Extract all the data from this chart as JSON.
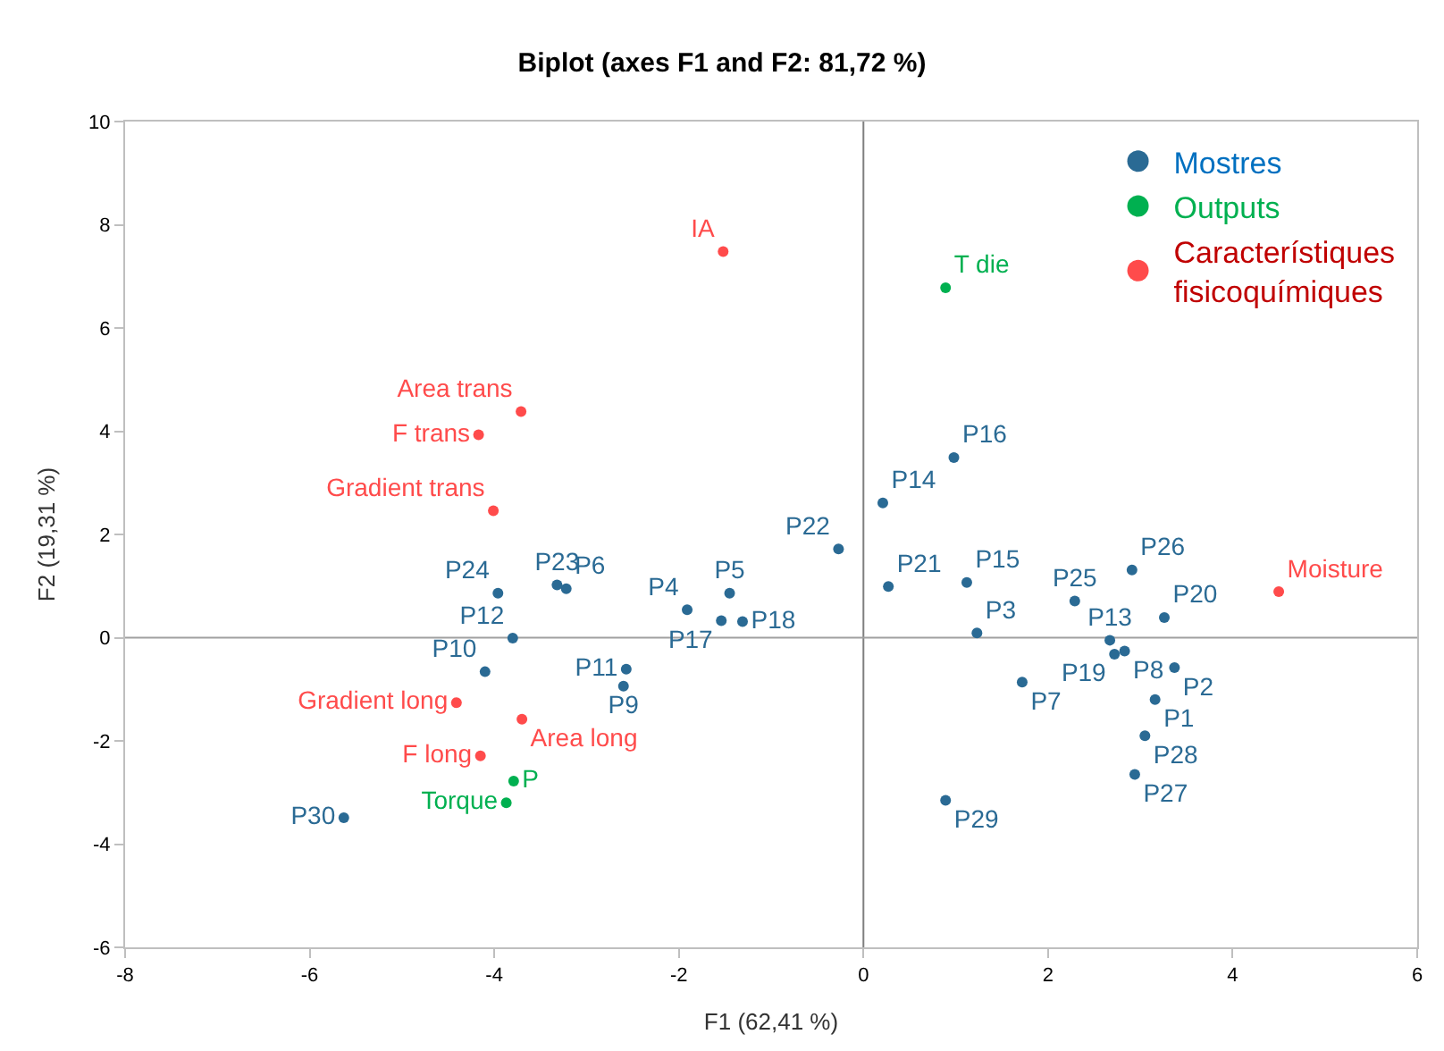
{
  "chart_data": {
    "type": "scatter",
    "title": "Biplot (axes F1 and F2: 81,72 %)",
    "xlabel": "F1 (62,41 %)",
    "ylabel": "F2 (19,31 %)",
    "xlim": [
      -8,
      6
    ],
    "xticks": [
      -8,
      -6,
      -4,
      -2,
      0,
      2,
      4,
      6
    ],
    "ylim": [
      -6,
      10
    ],
    "yticks": [
      -6,
      -4,
      -2,
      0,
      2,
      4,
      6,
      8,
      10
    ],
    "ref_lines": [
      {
        "axis": "x",
        "value": 0,
        "color": "#7f7f7f"
      },
      {
        "axis": "y",
        "value": 0,
        "color": "#a0a0a0"
      }
    ],
    "legend": "top right",
    "marker": "circle",
    "series": [
      {
        "name": "Mostres",
        "color": "#2a6a94",
        "x": [
          3.16,
          3.37,
          1.23,
          -1.91,
          -1.45,
          -3.22,
          1.72,
          2.83,
          -2.6,
          -4.1,
          -2.57,
          -3.8,
          2.67,
          0.21,
          1.12,
          0.98,
          -1.54,
          -1.31,
          2.72,
          3.26,
          0.27,
          -0.27,
          -3.32,
          -3.96,
          2.29,
          2.91,
          2.94,
          3.05,
          0.89,
          -5.63
        ],
        "values": [
          -1.2,
          -0.58,
          0.09,
          0.54,
          0.86,
          0.95,
          -0.86,
          -0.26,
          -0.94,
          -0.66,
          -0.61,
          -0.01,
          -0.05,
          2.61,
          1.07,
          3.49,
          0.33,
          0.31,
          -0.32,
          0.39,
          0.99,
          1.72,
          1.02,
          0.86,
          0.71,
          1.31,
          -2.65,
          -1.9,
          -3.15,
          -3.49
        ],
        "value_labels": [
          "P1",
          "P2",
          "P3",
          "P4",
          "P5",
          "P6",
          "P7",
          "P8",
          "P9",
          "P10",
          "P11",
          "P12",
          "P13",
          "P14",
          "P15",
          "P16",
          "P17",
          "P18",
          "P19",
          "P20",
          "P21",
          "P22",
          "P23",
          "P24",
          "P25",
          "P26",
          "P27",
          "P28",
          "P29",
          "P30"
        ]
      },
      {
        "name": "Outputs",
        "color": "#00b050",
        "x": [
          0.89,
          -3.79,
          -3.87
        ],
        "values": [
          6.78,
          -2.78,
          -3.2
        ],
        "value_labels": [
          "T die",
          "P",
          "Torque"
        ]
      },
      {
        "name": "Característiques fisicoquímiques",
        "color": "#ff4b4b",
        "x": [
          -1.52,
          -3.71,
          -4.17,
          -4.01,
          -4.41,
          -3.7,
          -4.15,
          4.5
        ],
        "values": [
          7.48,
          4.38,
          3.93,
          2.46,
          -1.26,
          -1.58,
          -2.29,
          0.89
        ],
        "value_labels": [
          "IA",
          "Area trans",
          "F trans",
          "Gradient trans",
          "Gradient long",
          "Area long",
          "F long",
          "Moisture"
        ]
      }
    ]
  }
}
